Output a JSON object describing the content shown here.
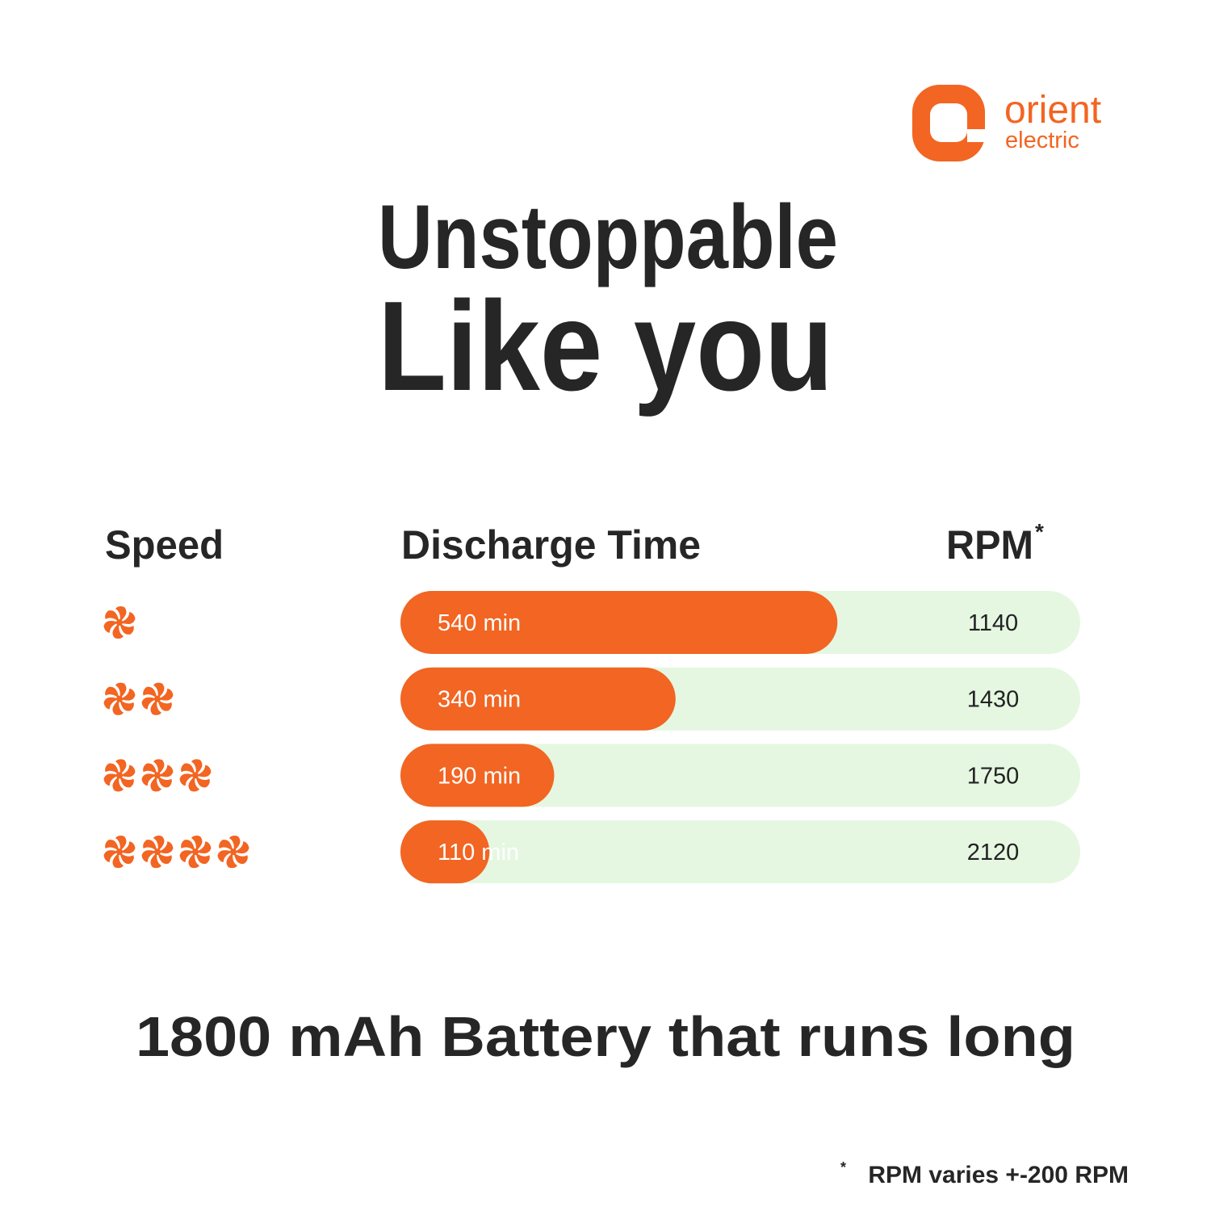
{
  "logo": {
    "name": "orient",
    "tagline": "electric"
  },
  "headline": [
    "Unstoppable",
    "Like you"
  ],
  "chart_data": {
    "type": "bar",
    "headers": {
      "speed": "Speed",
      "time": "Discharge Time",
      "rpm": "RPM",
      "rpm_mark": "*"
    },
    "categories": [
      null,
      null,
      null,
      null
    ],
    "speed_levels": [
      1,
      2,
      3,
      4
    ],
    "values": [
      540,
      340,
      190,
      110
    ],
    "value_labels": [
      "540 min",
      "340 min",
      "190 min",
      "110 min"
    ],
    "rpm": [
      1140,
      1430,
      1750,
      2120
    ],
    "xlim": [
      0,
      840
    ],
    "color": "#f26522",
    "track_color": "#e5f7e1",
    "icon_color": "#f26522"
  },
  "subtitle": "1800 mAh Battery that runs long",
  "footnote": {
    "mark": "*",
    "text": "RPM varies +-200 RPM"
  }
}
